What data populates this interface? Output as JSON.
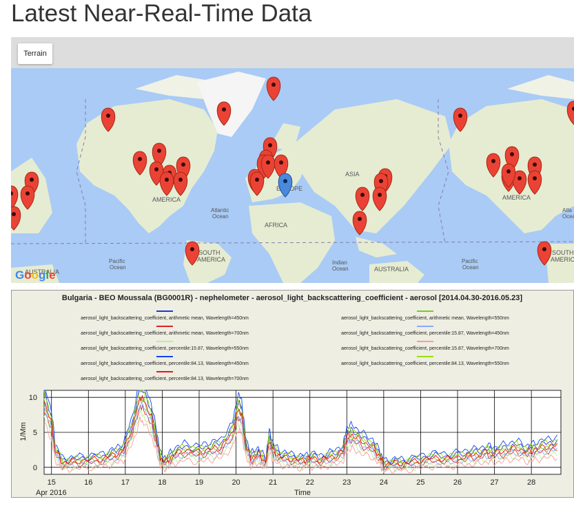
{
  "page": {
    "title": "Latest Near-Real-Time Data"
  },
  "map": {
    "map_type_button": "Terrain",
    "logo": "Google",
    "labels": [
      {
        "text": "ASIA",
        "kind": "continent"
      },
      {
        "text": "EUROPE",
        "kind": "continent"
      },
      {
        "text": "AFRICA",
        "kind": "continent"
      },
      {
        "text": "AMERICA",
        "kind": "continent"
      },
      {
        "text": "AMERICA",
        "kind": "continent"
      },
      {
        "text": "SOUTH",
        "kind": "continent"
      },
      {
        "text": "AMERICA",
        "kind": "continent"
      },
      {
        "text": "SOUTH",
        "kind": "continent"
      },
      {
        "text": "AMERICA",
        "kind": "continent"
      },
      {
        "text": "AUSTRALIA",
        "kind": "continent"
      },
      {
        "text": "AUSTRALIA",
        "kind": "continent"
      },
      {
        "text": "Atlantic",
        "kind": "ocean"
      },
      {
        "text": "Ocean",
        "kind": "ocean"
      },
      {
        "text": "Atla",
        "kind": "ocean"
      },
      {
        "text": "Ocea",
        "kind": "ocean"
      },
      {
        "text": "Pacific",
        "kind": "ocean"
      },
      {
        "text": "Ocean",
        "kind": "ocean"
      },
      {
        "text": "Indian",
        "kind": "ocean"
      },
      {
        "text": "Ocean",
        "kind": "ocean"
      },
      {
        "text": "Pacific",
        "kind": "ocean"
      },
      {
        "text": "Ocean",
        "kind": "ocean"
      }
    ],
    "colors": {
      "water": "#a9cbf5",
      "land": "#e6ecd2",
      "ice": "#f5f5f5",
      "marker": "#ea4335",
      "marker_selected": "#4a89dc"
    }
  },
  "chart_data": {
    "type": "line",
    "title": "Bulgaria - BEO Moussala (BG0001R) - nephelometer - aerosol_light_backscattering_coefficient - aerosol [2014.04.30-2016.05.23]",
    "xlabel": "Time",
    "x_month_label": "Apr 2016",
    "ylabel": "1/Mm",
    "xlim": [
      14.8,
      28.8
    ],
    "ylim": [
      -1,
      11
    ],
    "x_ticks": [
      "15",
      "16",
      "17",
      "18",
      "19",
      "20",
      "21",
      "22",
      "23",
      "24",
      "25",
      "26",
      "27",
      "28"
    ],
    "y_ticks": [
      "0",
      "5",
      "10"
    ],
    "grid": true,
    "legend_position": "top",
    "series": [
      {
        "name": "aerosol_light_backscattering_coefficient, arithmetic mean, Wavelength=450nm",
        "color": "#2233dd",
        "scale": 1.05,
        "offset": 0.3
      },
      {
        "name": "aerosol_light_backscattering_coefficient, arithmetic mean, Wavelength=550nm",
        "color": "#77cc22",
        "scale": 0.95,
        "offset": 0.0
      },
      {
        "name": "aerosol_light_backscattering_coefficient, arithmetic mean, Wavelength=700nm",
        "color": "#dd2222",
        "scale": 0.85,
        "offset": -0.2
      },
      {
        "name": "aerosol_light_backscattering_coefficient, percentile:15.87, Wavelength=450nm",
        "color": "#88aaff",
        "scale": 0.9,
        "offset": -0.4
      },
      {
        "name": "aerosol_light_backscattering_coefficient, percentile:15.87, Wavelength=550nm",
        "color": "#bbee99",
        "scale": 0.8,
        "offset": -0.6
      },
      {
        "name": "aerosol_light_backscattering_coefficient, percentile:15.87, Wavelength=700nm",
        "color": "#ff9999",
        "scale": 0.72,
        "offset": -0.8
      },
      {
        "name": "aerosol_light_backscattering_coefficient, percentile:84.13, Wavelength=450nm",
        "color": "#1144ee",
        "scale": 1.15,
        "offset": 0.6
      },
      {
        "name": "aerosol_light_backscattering_coefficient, percentile:84.13, Wavelength=550nm",
        "color": "#99dd00",
        "scale": 1.05,
        "offset": 0.4
      },
      {
        "name": "aerosol_light_backscattering_coefficient, percentile:84.13, Wavelength=700nm",
        "color": "#ee1111",
        "scale": 0.95,
        "offset": 0.1
      }
    ],
    "base_curve": {
      "x": [
        14.8,
        15.0,
        15.1,
        15.3,
        15.6,
        16.0,
        16.4,
        16.7,
        16.95,
        17.2,
        17.4,
        17.5,
        17.7,
        17.85,
        17.95,
        18.1,
        18.3,
        18.6,
        19.0,
        19.3,
        19.6,
        19.9,
        20.05,
        20.15,
        20.25,
        20.4,
        20.6,
        20.8,
        20.9,
        21.0,
        21.2,
        21.5,
        21.8,
        22.0,
        22.3,
        22.6,
        22.9,
        23.0,
        23.15,
        23.4,
        23.7,
        23.9,
        24.0,
        24.3,
        24.6,
        25.0,
        25.4,
        25.8,
        26.2,
        26.5,
        26.8,
        27.0,
        27.3,
        27.6,
        27.9,
        28.1,
        28.4,
        28.7
      ],
      "y": [
        10.0,
        6.5,
        2.5,
        0.6,
        0.8,
        1.0,
        1.2,
        1.8,
        2.5,
        6.0,
        10.5,
        10.0,
        7.5,
        4.0,
        1.3,
        0.7,
        1.8,
        2.5,
        2.2,
        2.6,
        3.0,
        5.0,
        8.5,
        8.0,
        3.5,
        1.2,
        2.0,
        0.6,
        4.0,
        2.5,
        1.5,
        1.2,
        0.9,
        1.3,
        1.0,
        1.5,
        2.2,
        4.5,
        4.8,
        3.8,
        3.0,
        1.5,
        0.3,
        0.6,
        0.5,
        1.0,
        1.3,
        1.2,
        1.6,
        1.8,
        2.2,
        2.0,
        2.4,
        2.8,
        2.2,
        2.6,
        3.0,
        3.2
      ]
    }
  }
}
